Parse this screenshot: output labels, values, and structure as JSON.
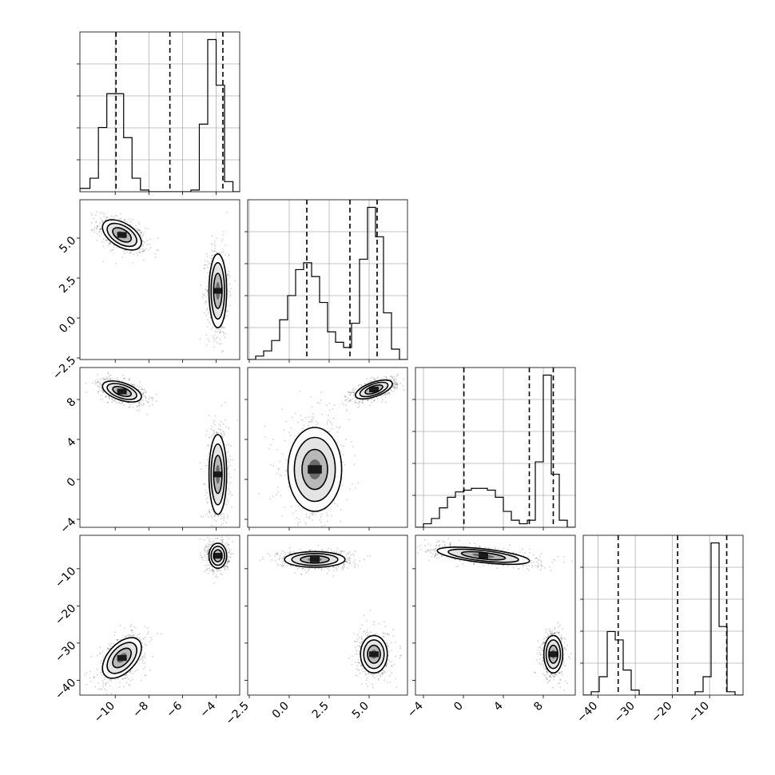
{
  "chart_data": {
    "type": "corner",
    "n_params": 4,
    "grid": true,
    "tick_labels": [
      [
        "−10",
        "−8",
        "−6",
        "−4"
      ],
      [
        "−2.5",
        "0.0",
        "2.5",
        "5.0"
      ],
      [
        "−4",
        "0",
        "4",
        "8"
      ],
      [
        "−40",
        "−30",
        "−20",
        "−10"
      ]
    ],
    "tick_values": [
      [
        -10,
        -8,
        -6,
        -4
      ],
      [
        -2.5,
        0.0,
        2.5,
        5.0
      ],
      [
        -4,
        0,
        4,
        8
      ],
      [
        -40,
        -30,
        -20,
        -10
      ]
    ],
    "ranges": [
      [
        -12.1,
        -2.6
      ],
      [
        -2.6,
        7.4
      ],
      [
        -4.8,
        11.2
      ],
      [
        -44,
        -1
      ]
    ],
    "quantiles": [
      [
        -9.95,
        -6.75,
        -3.6
      ],
      [
        1.1,
        3.8,
        5.5
      ],
      [
        0.05,
        6.6,
        9.0
      ],
      [
        -34.6,
        -18.6,
        -5.4
      ]
    ],
    "histograms": [
      {
        "bins": [
          -12.1,
          -11.5,
          -11.0,
          -10.5,
          -10.0,
          -9.5,
          -9.0,
          -8.5,
          -8.0,
          -7.5,
          -7.0,
          -6.5,
          -6.0,
          -5.5,
          -5.0,
          -4.5,
          -4.0,
          -3.5,
          -3.0,
          -2.6
        ],
        "counts": [
          0.02,
          0.08,
          0.38,
          0.58,
          0.58,
          0.32,
          0.08,
          0.01,
          0.0,
          0.0,
          0.0,
          0.0,
          0.0,
          0.01,
          0.4,
          0.9,
          0.63,
          0.06,
          0.0
        ]
      },
      {
        "bins": [
          -2.6,
          -2.1,
          -1.6,
          -1.1,
          -0.6,
          -0.1,
          0.4,
          0.9,
          1.4,
          1.9,
          2.4,
          2.9,
          3.4,
          3.9,
          4.4,
          4.9,
          5.4,
          5.9,
          6.4,
          6.9,
          7.4
        ],
        "counts": [
          0.0,
          0.02,
          0.05,
          0.11,
          0.23,
          0.37,
          0.52,
          0.56,
          0.48,
          0.33,
          0.16,
          0.1,
          0.07,
          0.21,
          0.58,
          0.88,
          0.71,
          0.27,
          0.06,
          0.0
        ]
      },
      {
        "bins": [
          -4.8,
          -4.0,
          -3.2,
          -2.4,
          -1.6,
          -0.8,
          0.0,
          0.8,
          1.6,
          2.4,
          3.2,
          4.0,
          4.8,
          5.6,
          6.4,
          7.2,
          8.0,
          8.8,
          9.6,
          10.4,
          11.2
        ],
        "counts": [
          0.0,
          0.02,
          0.05,
          0.11,
          0.17,
          0.2,
          0.21,
          0.22,
          0.22,
          0.21,
          0.17,
          0.09,
          0.04,
          0.02,
          0.04,
          0.37,
          0.86,
          0.3,
          0.04,
          0.0
        ]
      },
      {
        "bins": [
          -44,
          -41.85,
          -39.7,
          -37.55,
          -35.4,
          -33.25,
          -31.1,
          -28.95,
          -26.8,
          -24.65,
          -22.5,
          -20.35,
          -18.2,
          -16.05,
          -13.9,
          -11.75,
          -9.6,
          -7.45,
          -5.3,
          -3.15,
          -1
        ],
        "counts": [
          0.0,
          0.02,
          0.11,
          0.38,
          0.33,
          0.15,
          0.03,
          0.0,
          0.0,
          0.0,
          0.0,
          0.0,
          0.0,
          0.0,
          0.02,
          0.11,
          0.91,
          0.41,
          0.02,
          0.0
        ]
      }
    ],
    "clusters": [
      {
        "name": "",
        "mean": [
          -9.6,
          5.2,
          8.8,
          -34.0
        ],
        "sd": [
          0.6,
          0.45,
          0.5,
          2.8
        ]
      },
      {
        "name": "",
        "mean": [
          -3.9,
          1.7,
          0.5,
          -6.5
        ],
        "sd": [
          0.28,
          1.1,
          1.9,
          1.6
        ]
      },
      {
        "name": "",
        "mean": [
          -6.8,
          5.3,
          9.0,
          -33.0
        ],
        "sd": [
          0.3,
          0.55,
          0.4,
          2.8
        ]
      },
      {
        "name": "",
        "mean": [
          -6.8,
          1.6,
          2.0,
          -7.5
        ],
        "sd": [
          0.3,
          0.9,
          2.2,
          1.6
        ]
      }
    ],
    "pairs": [
      {
        "row": 1,
        "col": 0,
        "clusters": [
          [
            -9.6,
            5.2,
            0.55,
            0.45,
            -0.5
          ],
          [
            -3.9,
            1.7,
            0.25,
            1.1,
            0.0
          ]
        ]
      },
      {
        "row": 2,
        "col": 0,
        "clusters": [
          [
            -9.6,
            8.8,
            0.55,
            0.5,
            -0.5
          ],
          [
            -3.9,
            0.5,
            0.25,
            1.9,
            0.0
          ]
        ]
      },
      {
        "row": 2,
        "col": 1,
        "clusters": [
          [
            1.6,
            1.0,
            0.8,
            2.0,
            0.0
          ],
          [
            5.3,
            9.0,
            0.55,
            0.45,
            0.6
          ]
        ]
      },
      {
        "row": 3,
        "col": 0,
        "clusters": [
          [
            -9.6,
            -34.0,
            0.55,
            2.6,
            0.5
          ],
          [
            -3.9,
            -6.5,
            0.25,
            1.6,
            0.0
          ]
        ]
      },
      {
        "row": 3,
        "col": 1,
        "clusters": [
          [
            1.6,
            -7.5,
            0.9,
            1.0,
            0.0
          ],
          [
            5.3,
            -33.0,
            0.4,
            2.4,
            0.0
          ]
        ]
      },
      {
        "row": 3,
        "col": 2,
        "clusters": [
          [
            2.0,
            -6.5,
            2.2,
            1.1,
            -0.6
          ],
          [
            9.0,
            -33.0,
            0.45,
            2.4,
            0.0
          ]
        ]
      }
    ]
  }
}
